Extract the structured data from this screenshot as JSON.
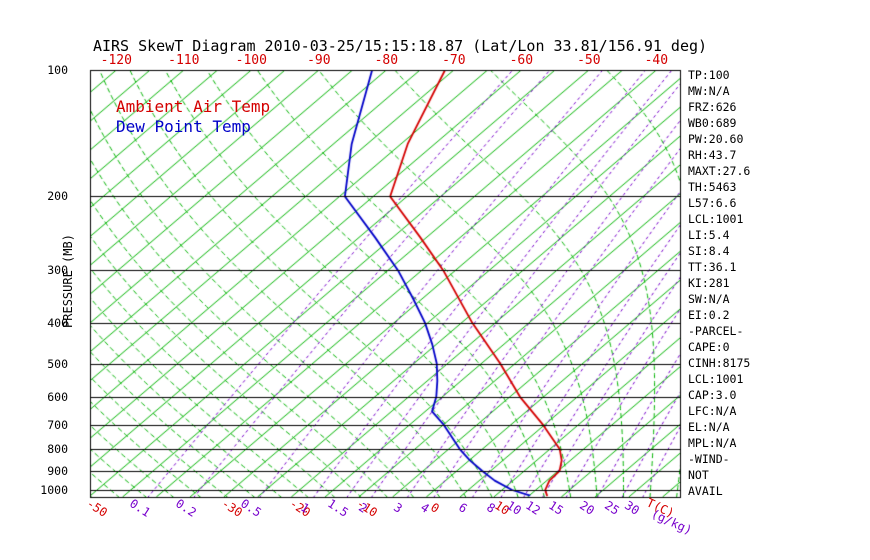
{
  "title": "AIRS SkewT Diagram 2010-03-25/15:15:18.87 (Lat/Lon 33.81/156.91 deg)",
  "legend": {
    "temperature": "Ambient Air Temp",
    "dewpoint": "Dew Point Temp"
  },
  "axes": {
    "y_label": "PRESSURE (MB)",
    "pressure_ticks": [
      100,
      200,
      300,
      400,
      500,
      600,
      700,
      800,
      900,
      1000
    ],
    "top_temp_labels": [
      -120,
      -110,
      -100,
      -90,
      -80,
      -70,
      -60,
      -50,
      -40
    ],
    "bottom_temp_labels": [
      -50,
      -30,
      -20,
      -10,
      0,
      10
    ],
    "bottom_temp_unit": "T(C)",
    "mixing_ratio_labels": [
      0.1,
      0.2,
      0.5,
      1,
      1.5,
      2,
      3,
      4,
      6,
      8,
      10,
      12,
      15,
      20,
      25,
      30
    ],
    "mixing_ratio_unit": "(g/kg)"
  },
  "stats_panel": [
    "TP:100",
    "MW:N/A",
    "FRZ:626",
    "WB0:689",
    "PW:20.60",
    "RH:43.7",
    "MAXT:27.6",
    "TH:5463",
    "L57:6.6",
    "LCL:1001",
    "LI:5.4",
    "SI:8.4",
    "TT:36.1",
    "KI:281",
    "SW:N/A",
    "EI:0.2",
    "-PARCEL-",
    "CAPE:0",
    "CINH:8175",
    "LCL:1001",
    "CAP:3.0",
    "LFC:N/A",
    "EL:N/A",
    "MPL:N/A",
    "-WIND-",
    "NOT",
    "AVAIL"
  ],
  "colors": {
    "temperature": "#D40000",
    "dewpoint": "#0000C8",
    "isotherm": "#00B400",
    "moist_adiabat": "#00B400",
    "mixing_ratio": "#7700CC",
    "axis": "#000000",
    "background": "#FFFFFF"
  },
  "chart_data": {
    "type": "line",
    "subtype": "skew-t-log-p",
    "title": "AIRS SkewT Diagram 2010-03-25/15:15:18.87 (Lat/Lon 33.81/156.91 deg)",
    "xlabel": "T(C)",
    "ylabel": "PRESSURE (MB)",
    "pressure_range_mb": [
      100,
      1045
    ],
    "temp_range_at_1000mb_c": [
      -52,
      37
    ],
    "isotherm_step_c": 5,
    "moist_adiabat_thetaw_c": [
      -60,
      36,
      4
    ],
    "mixing_ratio_lines_gkg": [
      0.1,
      0.2,
      0.5,
      1,
      1.5,
      2,
      3,
      4,
      6,
      8,
      10,
      12,
      15,
      20,
      25,
      30
    ],
    "grid": "skewed isotherms solid green, moist adiabats dashed green, mixing ratio dashed purple, pressure lines solid black",
    "legend_position": "top-left inside plot",
    "series": [
      {
        "name": "Ambient Air Temp",
        "units": {
          "pressure": "mb",
          "temperature": "C"
        },
        "points": [
          [
            1030,
            17.6
          ],
          [
            1000,
            16.4
          ],
          [
            950,
            15.4
          ],
          [
            900,
            15.2
          ],
          [
            850,
            13.7
          ],
          [
            800,
            11.5
          ],
          [
            700,
            4.8
          ],
          [
            600,
            -3.5
          ],
          [
            500,
            -12.2
          ],
          [
            400,
            -23.4
          ],
          [
            300,
            -36.8
          ],
          [
            250,
            -46.0
          ],
          [
            200,
            -57.5
          ],
          [
            150,
            -64.0
          ],
          [
            100,
            -71.3
          ]
        ]
      },
      {
        "name": "Dew Point Temp",
        "units": {
          "pressure": "mb",
          "temperature": "C"
        },
        "points": [
          [
            1030,
            15.0
          ],
          [
            1000,
            11.5
          ],
          [
            950,
            7.3
          ],
          [
            900,
            3.7
          ],
          [
            850,
            0.1
          ],
          [
            800,
            -3.3
          ],
          [
            700,
            -9.9
          ],
          [
            650,
            -14.0
          ],
          [
            600,
            -15.9
          ],
          [
            550,
            -18.5
          ],
          [
            500,
            -21.6
          ],
          [
            450,
            -25.6
          ],
          [
            400,
            -30.4
          ],
          [
            350,
            -36.4
          ],
          [
            300,
            -43.5
          ],
          [
            250,
            -52.7
          ],
          [
            200,
            -64.2
          ],
          [
            150,
            -72.3
          ],
          [
            100,
            -82.1
          ]
        ]
      }
    ]
  }
}
